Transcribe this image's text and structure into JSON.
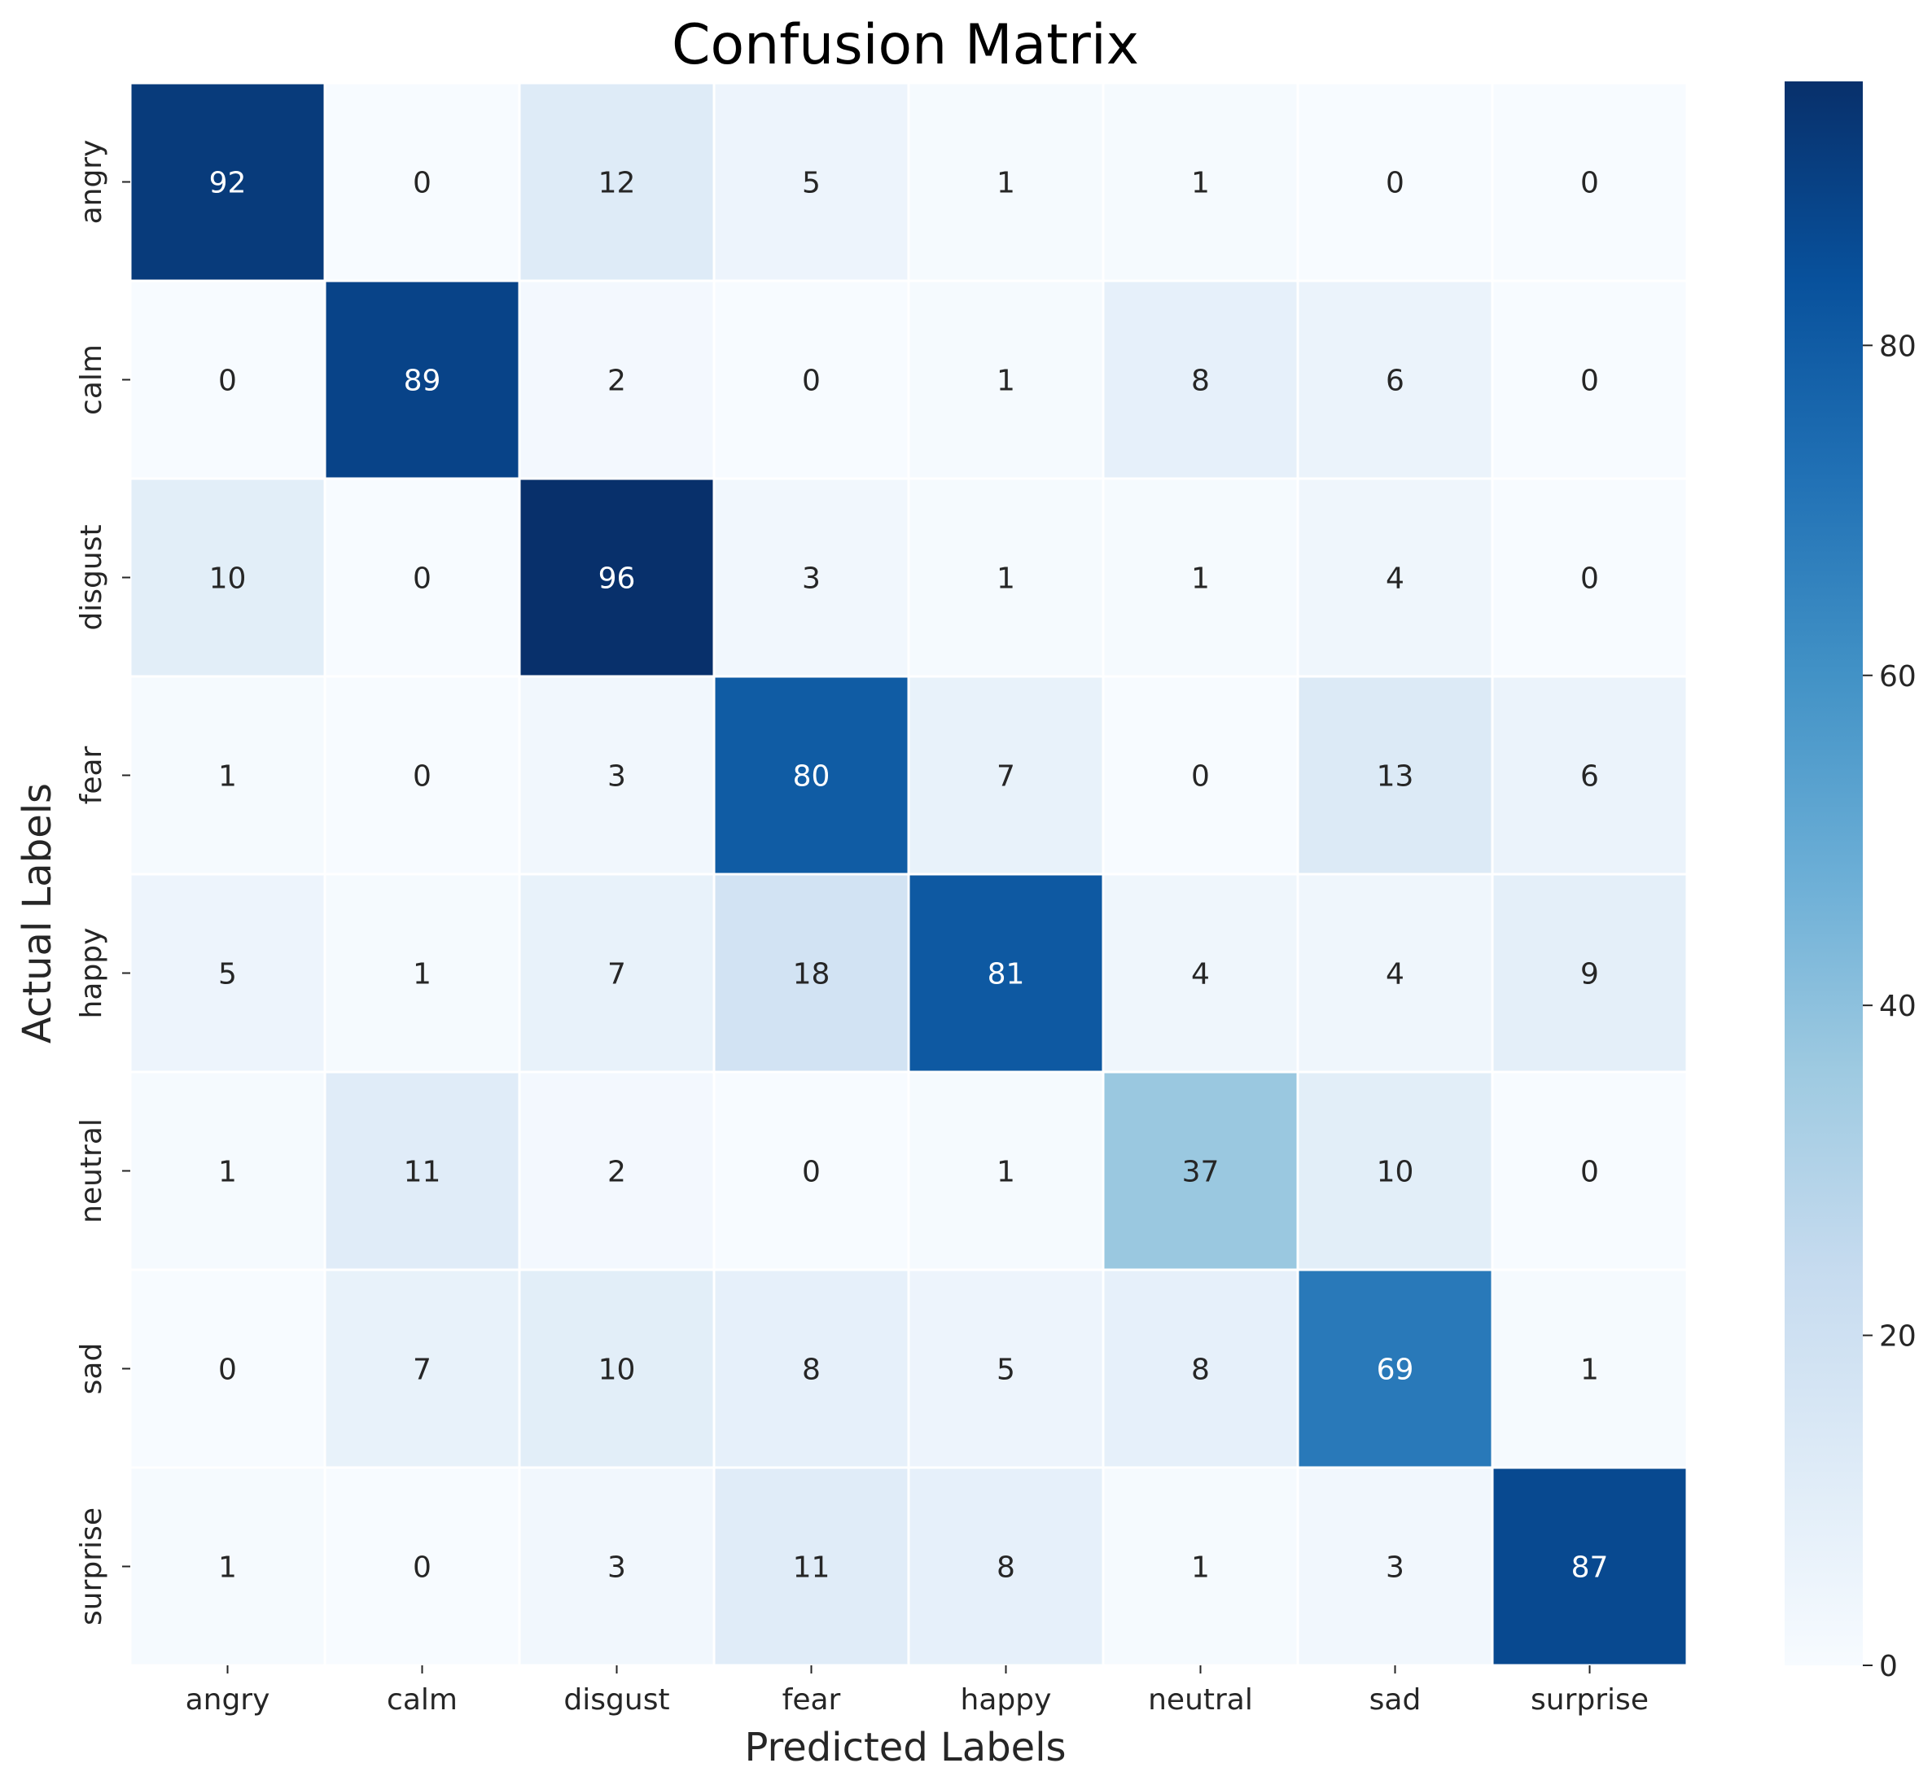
{
  "chart_data": {
    "type": "heatmap",
    "title": "Confusion Matrix",
    "xlabel": "Predicted Labels",
    "ylabel": "Actual Labels",
    "x_categories": [
      "angry",
      "calm",
      "disgust",
      "fear",
      "happy",
      "neutral",
      "sad",
      "surprise"
    ],
    "y_categories": [
      "angry",
      "calm",
      "disgust",
      "fear",
      "happy",
      "neutral",
      "sad",
      "surprise"
    ],
    "values": [
      [
        92,
        0,
        12,
        5,
        1,
        1,
        0,
        0
      ],
      [
        0,
        89,
        2,
        0,
        1,
        8,
        6,
        0
      ],
      [
        10,
        0,
        96,
        3,
        1,
        1,
        4,
        0
      ],
      [
        1,
        0,
        3,
        80,
        7,
        0,
        13,
        6
      ],
      [
        5,
        1,
        7,
        18,
        81,
        4,
        4,
        9
      ],
      [
        1,
        11,
        2,
        0,
        1,
        37,
        10,
        0
      ],
      [
        0,
        7,
        10,
        8,
        5,
        8,
        69,
        1
      ],
      [
        1,
        0,
        3,
        11,
        8,
        1,
        3,
        87
      ]
    ],
    "colorbar": {
      "label": "",
      "range": [
        0,
        96
      ],
      "ticks": [
        0,
        20,
        40,
        60,
        80
      ],
      "tick_labels": [
        "0",
        "20",
        "40",
        "60",
        "80"
      ],
      "colormap": "Blues"
    },
    "cell_text_color_dark": "#262626",
    "cell_text_color_light": "#ffffff"
  }
}
